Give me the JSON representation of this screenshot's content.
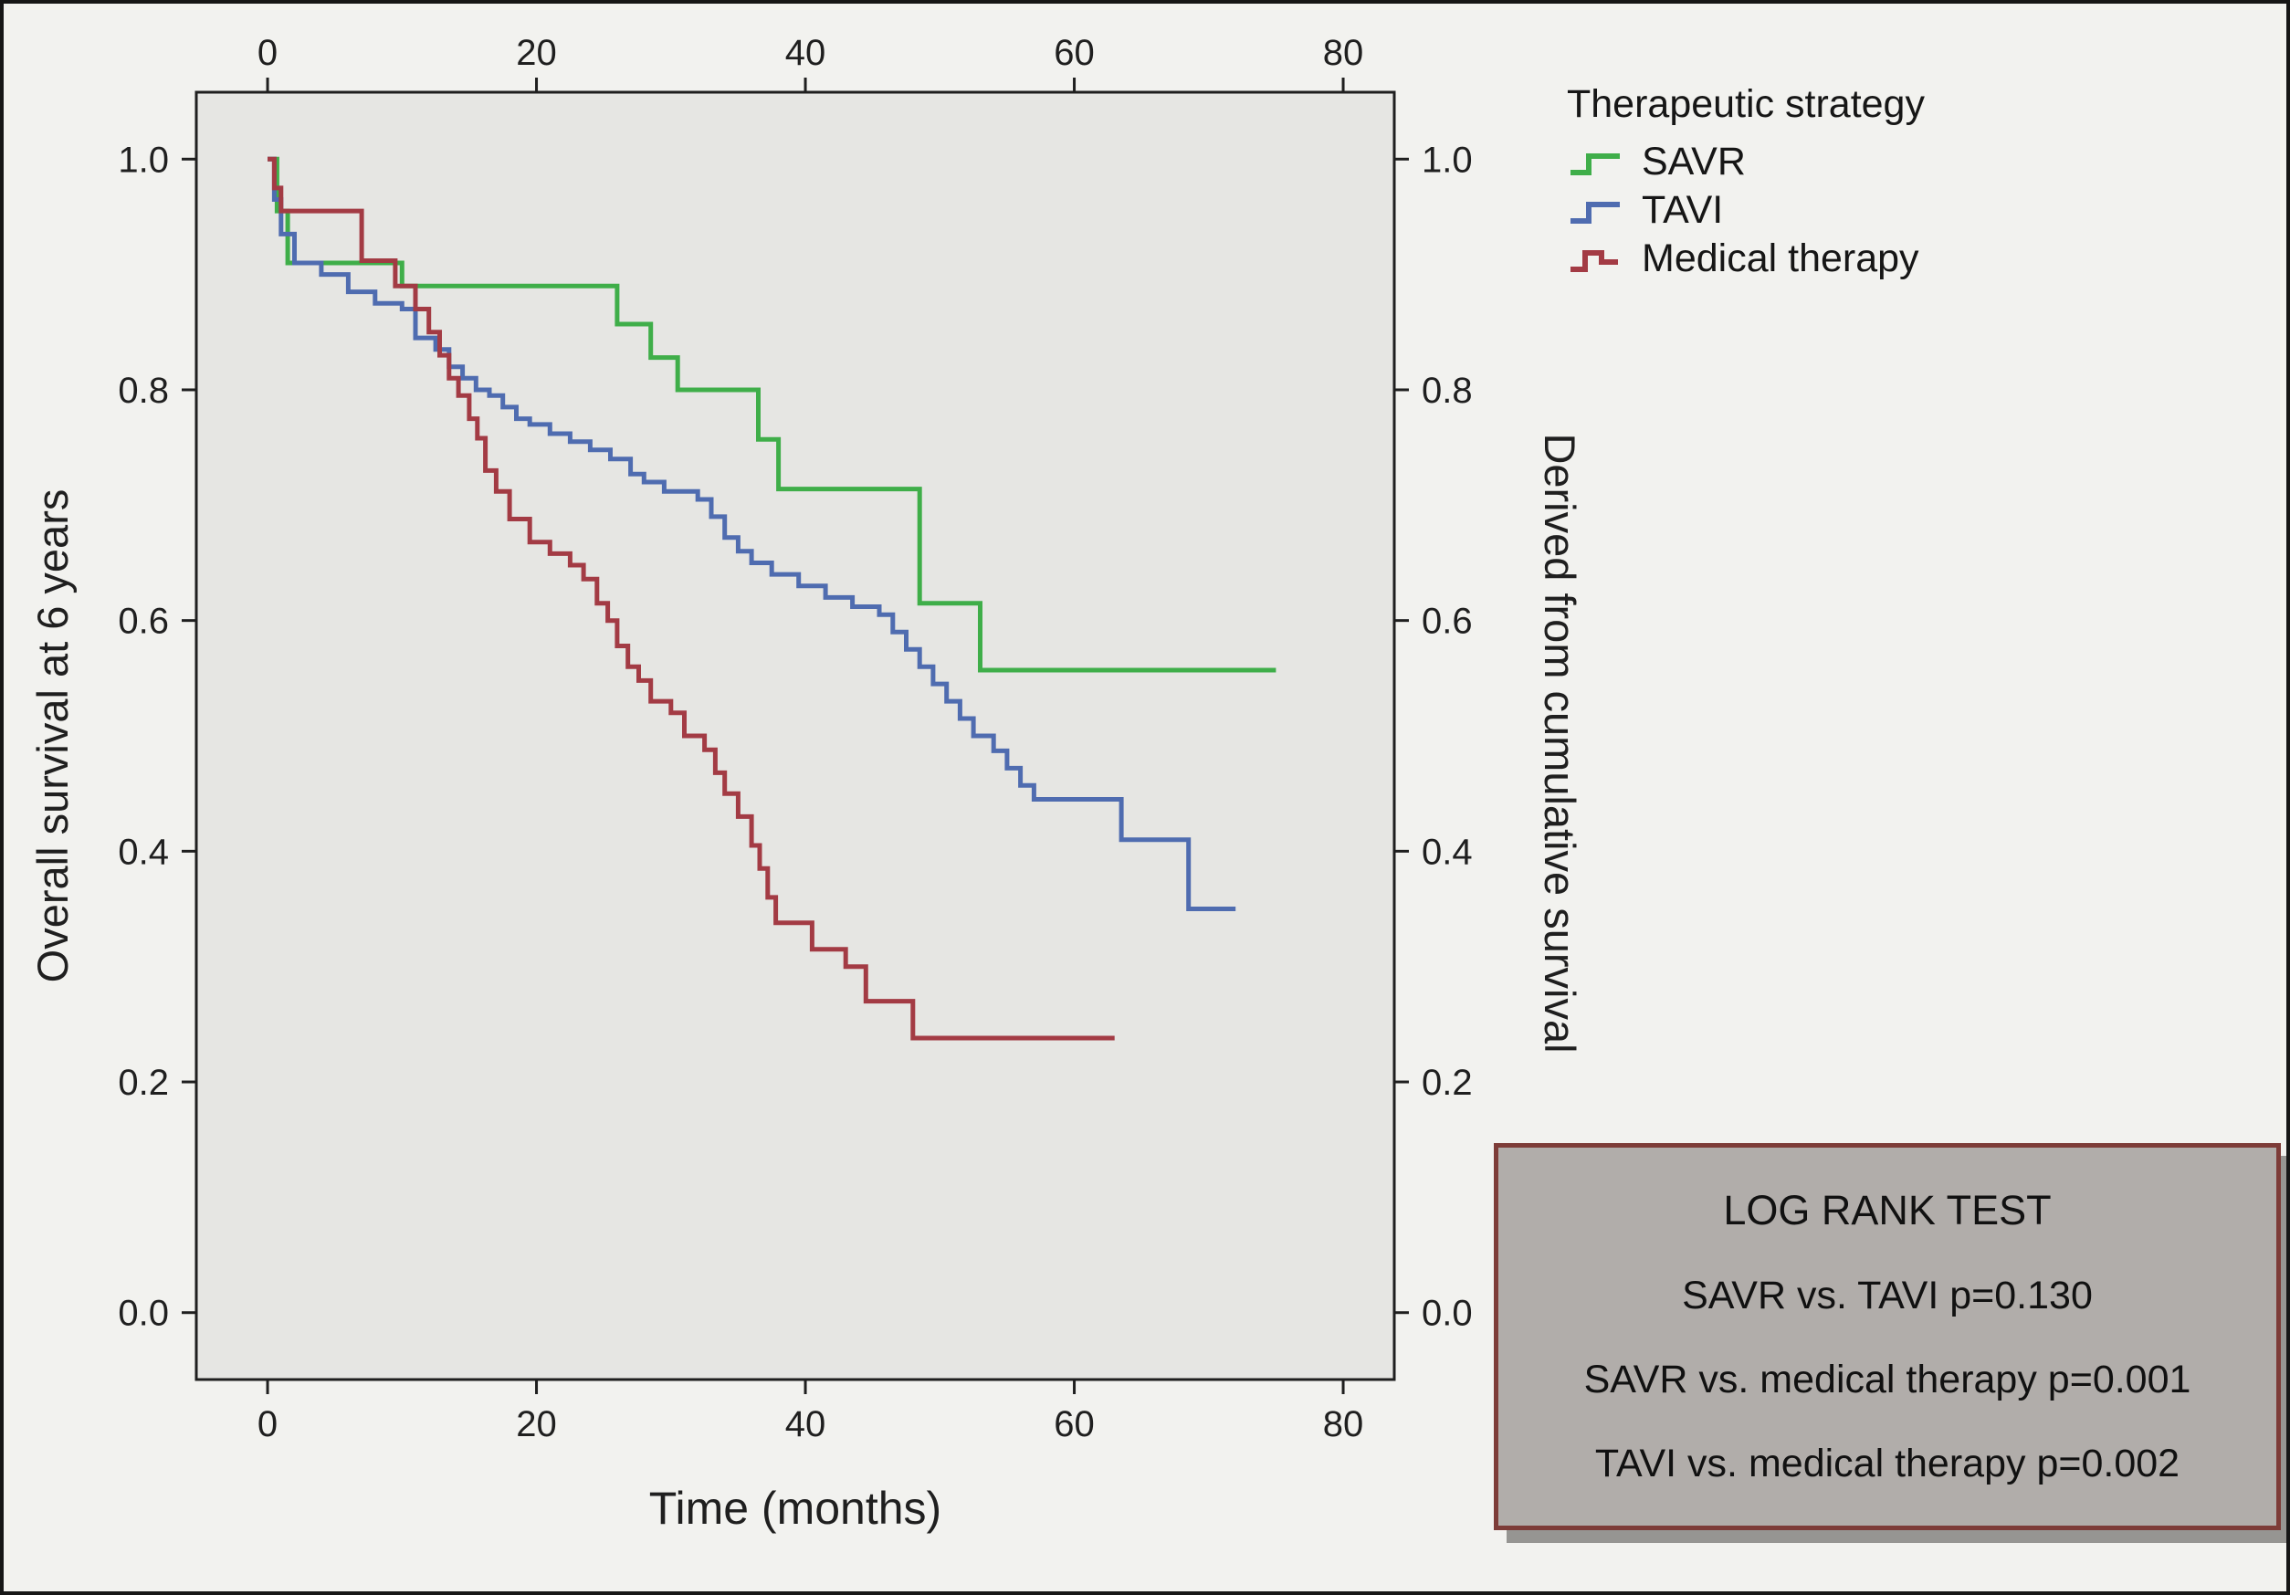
{
  "figure": {
    "legend": {
      "title": "Therapeutic strategy",
      "entries": [
        {
          "label": "SAVR",
          "color": "#3fae49"
        },
        {
          "label": "TAVI",
          "color": "#4f6cb0"
        },
        {
          "label": "Medical therapy",
          "color": "#a33b44"
        }
      ]
    },
    "log_rank_box": {
      "title": "LOG RANK TEST",
      "lines": [
        "SAVR vs. TAVI  p=0.130",
        "SAVR vs. medical therapy  p=0.001",
        "TAVI vs. medical therapy  p=0.002"
      ]
    }
  },
  "chart_data": {
    "type": "line",
    "subtype": "kaplan-meier-step",
    "title": "",
    "xlabel": "Time (months)",
    "ylabel_left": "Overall survival at 6 years",
    "ylabel_right": "Derived from cumulative survival",
    "xlim": [
      -5.3,
      83.8
    ],
    "ylim": [
      -0.058,
      1.058
    ],
    "xticks": [
      0,
      20,
      40,
      60,
      80
    ],
    "yticks": [
      0.0,
      0.2,
      0.4,
      0.6,
      0.8,
      1.0
    ],
    "grid": false,
    "legend_position": "top-right-outside",
    "plot_bg": "#e6e6e3",
    "axis_color": "#1f1f1f",
    "series": [
      {
        "name": "SAVR",
        "color": "#3fae49",
        "points": [
          [
            0,
            1.0
          ],
          [
            0.7,
            0.955
          ],
          [
            1.5,
            0.91
          ],
          [
            10,
            0.89
          ],
          [
            26,
            0.857
          ],
          [
            28.5,
            0.828
          ],
          [
            30.5,
            0.8
          ],
          [
            36.5,
            0.757
          ],
          [
            38,
            0.714
          ],
          [
            48.5,
            0.615
          ],
          [
            53,
            0.557
          ],
          [
            75,
            0.557
          ]
        ]
      },
      {
        "name": "TAVI",
        "color": "#4f6cb0",
        "points": [
          [
            0,
            1.0
          ],
          [
            0.5,
            0.965
          ],
          [
            1,
            0.935
          ],
          [
            2,
            0.91
          ],
          [
            4,
            0.9
          ],
          [
            6,
            0.885
          ],
          [
            8,
            0.875
          ],
          [
            10,
            0.87
          ],
          [
            11,
            0.845
          ],
          [
            12.5,
            0.835
          ],
          [
            13.5,
            0.82
          ],
          [
            14.5,
            0.81
          ],
          [
            15.5,
            0.8
          ],
          [
            16.5,
            0.795
          ],
          [
            17.5,
            0.785
          ],
          [
            18.5,
            0.775
          ],
          [
            19.5,
            0.77
          ],
          [
            21,
            0.762
          ],
          [
            22.5,
            0.755
          ],
          [
            24,
            0.748
          ],
          [
            25.5,
            0.74
          ],
          [
            27,
            0.727
          ],
          [
            28,
            0.72
          ],
          [
            29.5,
            0.712
          ],
          [
            32,
            0.705
          ],
          [
            33,
            0.69
          ],
          [
            34,
            0.672
          ],
          [
            35,
            0.66
          ],
          [
            36,
            0.65
          ],
          [
            37.5,
            0.64
          ],
          [
            39.5,
            0.63
          ],
          [
            41.5,
            0.62
          ],
          [
            43.5,
            0.612
          ],
          [
            45.5,
            0.605
          ],
          [
            46.5,
            0.59
          ],
          [
            47.5,
            0.575
          ],
          [
            48.5,
            0.56
          ],
          [
            49.5,
            0.545
          ],
          [
            50.5,
            0.53
          ],
          [
            51.5,
            0.515
          ],
          [
            52.5,
            0.5
          ],
          [
            54,
            0.487
          ],
          [
            55,
            0.472
          ],
          [
            56,
            0.457
          ],
          [
            57,
            0.445
          ],
          [
            63.5,
            0.41
          ],
          [
            68.5,
            0.35
          ],
          [
            72,
            0.35
          ]
        ]
      },
      {
        "name": "Medical therapy",
        "color": "#a33b44",
        "points": [
          [
            0,
            1.0
          ],
          [
            0.5,
            0.975
          ],
          [
            1,
            0.955
          ],
          [
            7,
            0.912
          ],
          [
            9.5,
            0.89
          ],
          [
            11,
            0.87
          ],
          [
            12,
            0.85
          ],
          [
            12.8,
            0.83
          ],
          [
            13.5,
            0.81
          ],
          [
            14.2,
            0.795
          ],
          [
            15,
            0.775
          ],
          [
            15.6,
            0.758
          ],
          [
            16.2,
            0.73
          ],
          [
            17,
            0.712
          ],
          [
            18,
            0.688
          ],
          [
            19.5,
            0.668
          ],
          [
            21,
            0.658
          ],
          [
            22.5,
            0.648
          ],
          [
            23.5,
            0.636
          ],
          [
            24.5,
            0.615
          ],
          [
            25.3,
            0.6
          ],
          [
            26,
            0.578
          ],
          [
            26.8,
            0.56
          ],
          [
            27.6,
            0.548
          ],
          [
            28.5,
            0.53
          ],
          [
            30,
            0.52
          ],
          [
            31,
            0.5
          ],
          [
            32.5,
            0.488
          ],
          [
            33.3,
            0.468
          ],
          [
            34,
            0.45
          ],
          [
            35,
            0.43
          ],
          [
            36,
            0.405
          ],
          [
            36.6,
            0.385
          ],
          [
            37.2,
            0.36
          ],
          [
            37.8,
            0.338
          ],
          [
            40.5,
            0.315
          ],
          [
            43,
            0.3
          ],
          [
            44.5,
            0.27
          ],
          [
            48,
            0.238
          ],
          [
            63,
            0.238
          ]
        ]
      }
    ]
  }
}
